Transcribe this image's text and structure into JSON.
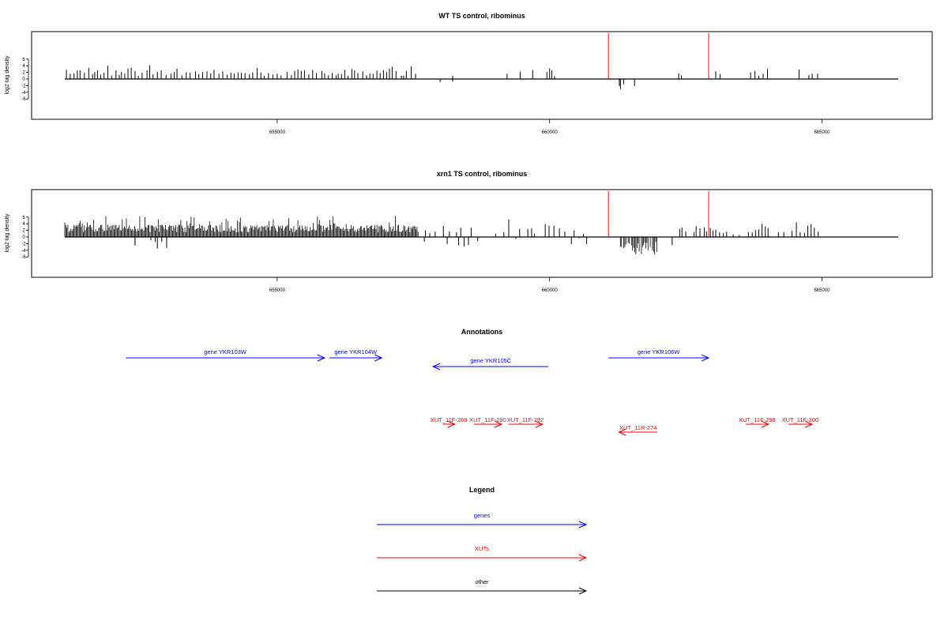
{
  "chart_data": [
    {
      "type": "bar",
      "title": "WT TS control, ribominus",
      "xlabel": "",
      "ylabel": "log2 tag density",
      "ylim": [
        -6,
        7
      ],
      "yticks": [
        -6,
        -4,
        -2,
        0,
        2,
        4,
        6
      ],
      "xlim": [
        651100,
        666400
      ],
      "xticks": [
        655000,
        660000,
        665000
      ],
      "xtick_labels": [
        "655000",
        "660000",
        "665000"
      ],
      "markers": [
        661080,
        662920
      ],
      "positive_bars": [
        [
          651130,
          2.8
        ],
        [
          651200,
          1.6
        ],
        [
          651270,
          1.7
        ],
        [
          651330,
          2.5
        ],
        [
          651380,
          2.6
        ],
        [
          651460,
          1.9
        ],
        [
          651540,
          3.3
        ],
        [
          651610,
          1.5
        ],
        [
          651650,
          2.1
        ],
        [
          651700,
          2.6
        ],
        [
          651760,
          1.3
        ],
        [
          651820,
          1.9
        ],
        [
          651890,
          4
        ],
        [
          651960,
          1.1
        ],
        [
          652040,
          2.6
        ],
        [
          652100,
          1.2
        ],
        [
          652140,
          2.1
        ],
        [
          652200,
          1.6
        ],
        [
          652260,
          3.1
        ],
        [
          652320,
          3.4
        ],
        [
          652390,
          2.4
        ],
        [
          652450,
          1.0
        ],
        [
          652520,
          1.9
        ],
        [
          652610,
          2.6
        ],
        [
          652660,
          4.1
        ],
        [
          652720,
          1.4
        ],
        [
          652800,
          2.2
        ],
        [
          652870,
          2.6
        ],
        [
          652960,
          1.2
        ],
        [
          653050,
          1.6
        ],
        [
          653110,
          2.1
        ],
        [
          653160,
          3.1
        ],
        [
          653250,
          1.1
        ],
        [
          653330,
          2.0
        ],
        [
          653400,
          1.9
        ],
        [
          653500,
          2.3
        ],
        [
          653560,
          1.5
        ],
        [
          653630,
          2.1
        ],
        [
          653710,
          2.3
        ],
        [
          653780,
          1.7
        ],
        [
          653840,
          2.8
        ],
        [
          653930,
          1.6
        ],
        [
          654000,
          2.3
        ],
        [
          654080,
          1.3
        ],
        [
          654150,
          1.9
        ],
        [
          654210,
          1.6
        ],
        [
          654280,
          2.0
        ],
        [
          654340,
          1.9
        ],
        [
          654410,
          1.8
        ],
        [
          654490,
          1.4
        ],
        [
          654550,
          1.9
        ],
        [
          654630,
          3.3
        ],
        [
          654700,
          2.0
        ],
        [
          654760,
          1.0
        ],
        [
          654840,
          1.8
        ],
        [
          654920,
          1.4
        ],
        [
          655000,
          1.6
        ],
        [
          655070,
          1.1
        ],
        [
          655180,
          2.1
        ],
        [
          655260,
          1.2
        ],
        [
          655320,
          2.4
        ],
        [
          655380,
          2.9
        ],
        [
          655440,
          2.5
        ],
        [
          655500,
          2.6
        ],
        [
          655580,
          1.4
        ],
        [
          655650,
          2.7
        ],
        [
          655720,
          1.8
        ],
        [
          655820,
          2.4
        ],
        [
          655870,
          1.7
        ],
        [
          655940,
          1.1
        ],
        [
          656010,
          1.8
        ],
        [
          656080,
          1.1
        ],
        [
          656120,
          1.6
        ],
        [
          656180,
          1.5
        ],
        [
          656240,
          2.7
        ],
        [
          656300,
          1.0
        ],
        [
          656370,
          3.0
        ],
        [
          656420,
          2.6
        ],
        [
          656480,
          1.8
        ],
        [
          656570,
          2.3
        ],
        [
          656640,
          1.1
        ],
        [
          656700,
          1.6
        ],
        [
          656760,
          1.6
        ],
        [
          656830,
          2.5
        ],
        [
          656890,
          1.8
        ],
        [
          656950,
          2.7
        ],
        [
          657010,
          2.1
        ],
        [
          657060,
          3.1
        ],
        [
          657110,
          3.7
        ],
        [
          657180,
          2.4
        ],
        [
          657280,
          1.0
        ],
        [
          657320,
          1.0
        ],
        [
          657370,
          2.4
        ],
        [
          657460,
          3.8
        ],
        [
          657540,
          1.6
        ],
        [
          658220,
          1.0
        ],
        [
          659220,
          1.6
        ],
        [
          659460,
          2.2
        ],
        [
          659690,
          2.7
        ],
        [
          659950,
          2.1
        ],
        [
          660000,
          3.2
        ],
        [
          660040,
          2.6
        ],
        [
          660090,
          0.9
        ],
        [
          662370,
          1.7
        ],
        [
          662420,
          1.1
        ],
        [
          663050,
          2.3
        ],
        [
          663130,
          1.5
        ],
        [
          663690,
          2.0
        ],
        [
          663770,
          2.4
        ],
        [
          663840,
          1.0
        ],
        [
          663920,
          1.6
        ],
        [
          664000,
          3.0
        ],
        [
          664580,
          2.8
        ],
        [
          664760,
          1.2
        ],
        [
          664820,
          1.6
        ],
        [
          664920,
          1.6
        ]
      ],
      "negative_bars": [
        [
          657990,
          -1.0
        ],
        [
          658220,
          -0.8
        ],
        [
          661280,
          -2.1
        ],
        [
          661300,
          -3.0
        ],
        [
          661360,
          -1.6
        ],
        [
          661560,
          -2.1
        ]
      ]
    },
    {
      "type": "bar",
      "title": "xrn1 TS control, ribominus",
      "xlabel": "",
      "ylabel": "log2 tag density",
      "ylim": [
        -6,
        7
      ],
      "yticks": [
        -6,
        -4,
        -2,
        0,
        2,
        4,
        6
      ],
      "xlim": [
        651100,
        666400
      ],
      "xticks": [
        655000,
        660000,
        665000
      ],
      "xtick_labels": [
        "655000",
        "660000",
        "665000"
      ],
      "markers": [
        661080,
        662920
      ],
      "pos_dense_range": [
        651100,
        657600
      ],
      "pos_dense_max": 6.5,
      "neg_dense_range": [
        661300,
        662000
      ],
      "neg_dense_min": -5.6,
      "positive_bars": [
        [
          657720,
          2.0
        ],
        [
          657800,
          1.2
        ],
        [
          657900,
          1.6
        ],
        [
          658050,
          3.3
        ],
        [
          658160,
          1.7
        ],
        [
          658290,
          1.4
        ],
        [
          658370,
          2.8
        ],
        [
          658560,
          2.8
        ],
        [
          659010,
          1.0
        ],
        [
          659160,
          1.5
        ],
        [
          659250,
          5.3
        ],
        [
          659450,
          2.4
        ],
        [
          659600,
          2.4
        ],
        [
          659670,
          2.6
        ],
        [
          659720,
          1.0
        ],
        [
          659920,
          3.9
        ],
        [
          659990,
          3.4
        ],
        [
          660080,
          3.4
        ],
        [
          660180,
          2.6
        ],
        [
          660280,
          1.6
        ],
        [
          660450,
          2.0
        ],
        [
          660620,
          1.0
        ],
        [
          662390,
          2.4
        ],
        [
          662430,
          2.9
        ],
        [
          662500,
          1.7
        ],
        [
          662650,
          1.5
        ],
        [
          662690,
          3.2
        ],
        [
          662760,
          2.6
        ],
        [
          662840,
          2.9
        ],
        [
          662880,
          1.7
        ],
        [
          662950,
          2.7
        ],
        [
          663000,
          2.0
        ],
        [
          663050,
          2.2
        ],
        [
          663120,
          1.4
        ],
        [
          663190,
          1.2
        ],
        [
          663250,
          1.6
        ],
        [
          663370,
          0.8
        ],
        [
          663480,
          0.6
        ],
        [
          663650,
          1.5
        ],
        [
          663720,
          1.4
        ],
        [
          663780,
          2.1
        ],
        [
          663840,
          2.3
        ],
        [
          663900,
          4.0
        ],
        [
          663960,
          3.2
        ],
        [
          664010,
          2.7
        ],
        [
          664200,
          1.4
        ],
        [
          664300,
          1.5
        ],
        [
          664450,
          1.8
        ],
        [
          664530,
          4.4
        ],
        [
          664600,
          1.5
        ],
        [
          664680,
          1.2
        ],
        [
          664740,
          3.4
        ],
        [
          664800,
          3.9
        ],
        [
          664860,
          2.8
        ],
        [
          664930,
          1.6
        ]
      ],
      "negative_bars": [
        [
          652390,
          -2.6
        ],
        [
          652680,
          -1.0
        ],
        [
          652760,
          -1.5
        ],
        [
          652800,
          -3.5
        ],
        [
          652880,
          -1.5
        ],
        [
          652970,
          -3.3
        ],
        [
          657700,
          -1.4
        ],
        [
          658120,
          -2.1
        ],
        [
          658330,
          -2.5
        ],
        [
          658430,
          -2.9
        ],
        [
          658510,
          -2.4
        ],
        [
          658680,
          -1.2
        ],
        [
          659380,
          -0.6
        ],
        [
          660400,
          -2.1
        ],
        [
          660540,
          -0.4
        ],
        [
          660680,
          -2.1
        ],
        [
          662250,
          -2.4
        ]
      ]
    }
  ],
  "annotations": {
    "title": "Annotations",
    "genes": [
      {
        "label": "gene YKR103W",
        "start": 652220,
        "end": 655870,
        "dir": "right"
      },
      {
        "label": "gene YKR104W",
        "start": 655960,
        "end": 656920,
        "dir": "right"
      },
      {
        "label": "gene YKR105C",
        "start": 657860,
        "end": 659980,
        "dir": "left"
      },
      {
        "label": "gene YKR106W",
        "start": 661080,
        "end": 662920,
        "dir": "right"
      }
    ],
    "xuts": [
      {
        "label": "XUT_11F-288",
        "start": 658040,
        "end": 658260,
        "dir": "right"
      },
      {
        "label": "XUT_11F-290",
        "start": 658610,
        "end": 659120,
        "dir": "right"
      },
      {
        "label": "XUT_11F-292",
        "start": 659240,
        "end": 659870,
        "dir": "right"
      },
      {
        "label": "XUT_11R-274",
        "start": 661270,
        "end": 661980,
        "dir": "left"
      },
      {
        "label": "XUT_11F-298",
        "start": 663600,
        "end": 664020,
        "dir": "right"
      },
      {
        "label": "XUT_11F-300",
        "start": 664380,
        "end": 664820,
        "dir": "right"
      }
    ]
  },
  "legend": {
    "title": "Legend",
    "items": [
      {
        "label": "genes",
        "color": "#0000ff"
      },
      {
        "label": "XUTs",
        "color": "#ff0000"
      },
      {
        "label": "other",
        "color": "#000000"
      }
    ]
  },
  "colors": {
    "data": "#000000",
    "marker": "#ff0000",
    "gene": "#0000ff",
    "xut": "#ff0000"
  }
}
